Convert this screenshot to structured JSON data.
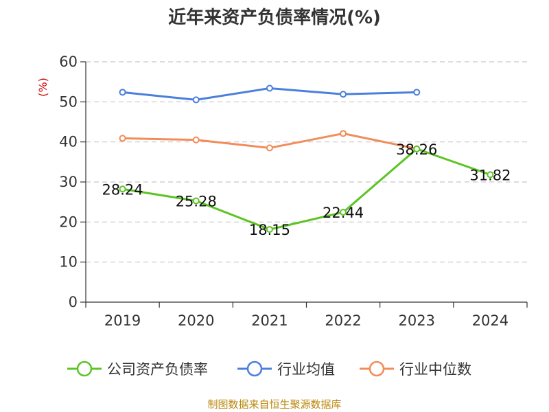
{
  "chart_data": {
    "type": "line",
    "title": "近年来资产负债率情况(%)",
    "xlabel": "",
    "ylabel": "(%)",
    "categories": [
      "2019",
      "2020",
      "2021",
      "2022",
      "2023",
      "2024"
    ],
    "ylim": [
      0,
      60
    ],
    "yticks": [
      0,
      10,
      20,
      30,
      40,
      50,
      60
    ],
    "grid": true,
    "legend_position": "bottom",
    "series": [
      {
        "name": "公司资产负债率",
        "color": "#5cc424",
        "values": [
          28.24,
          25.28,
          18.15,
          22.44,
          38.26,
          31.82
        ],
        "labels": [
          "28.24",
          "25.28",
          "18.15",
          "22.44",
          "38.26",
          "31.82"
        ]
      },
      {
        "name": "行业均值",
        "color": "#4a7fdc",
        "values": [
          52.4,
          50.5,
          53.4,
          51.9,
          52.4,
          null
        ]
      },
      {
        "name": "行业中位数",
        "color": "#f28c5a",
        "values": [
          40.9,
          40.5,
          38.5,
          42.1,
          38.3,
          null
        ]
      }
    ],
    "source": "制图数据来自恒生聚源数据库"
  }
}
